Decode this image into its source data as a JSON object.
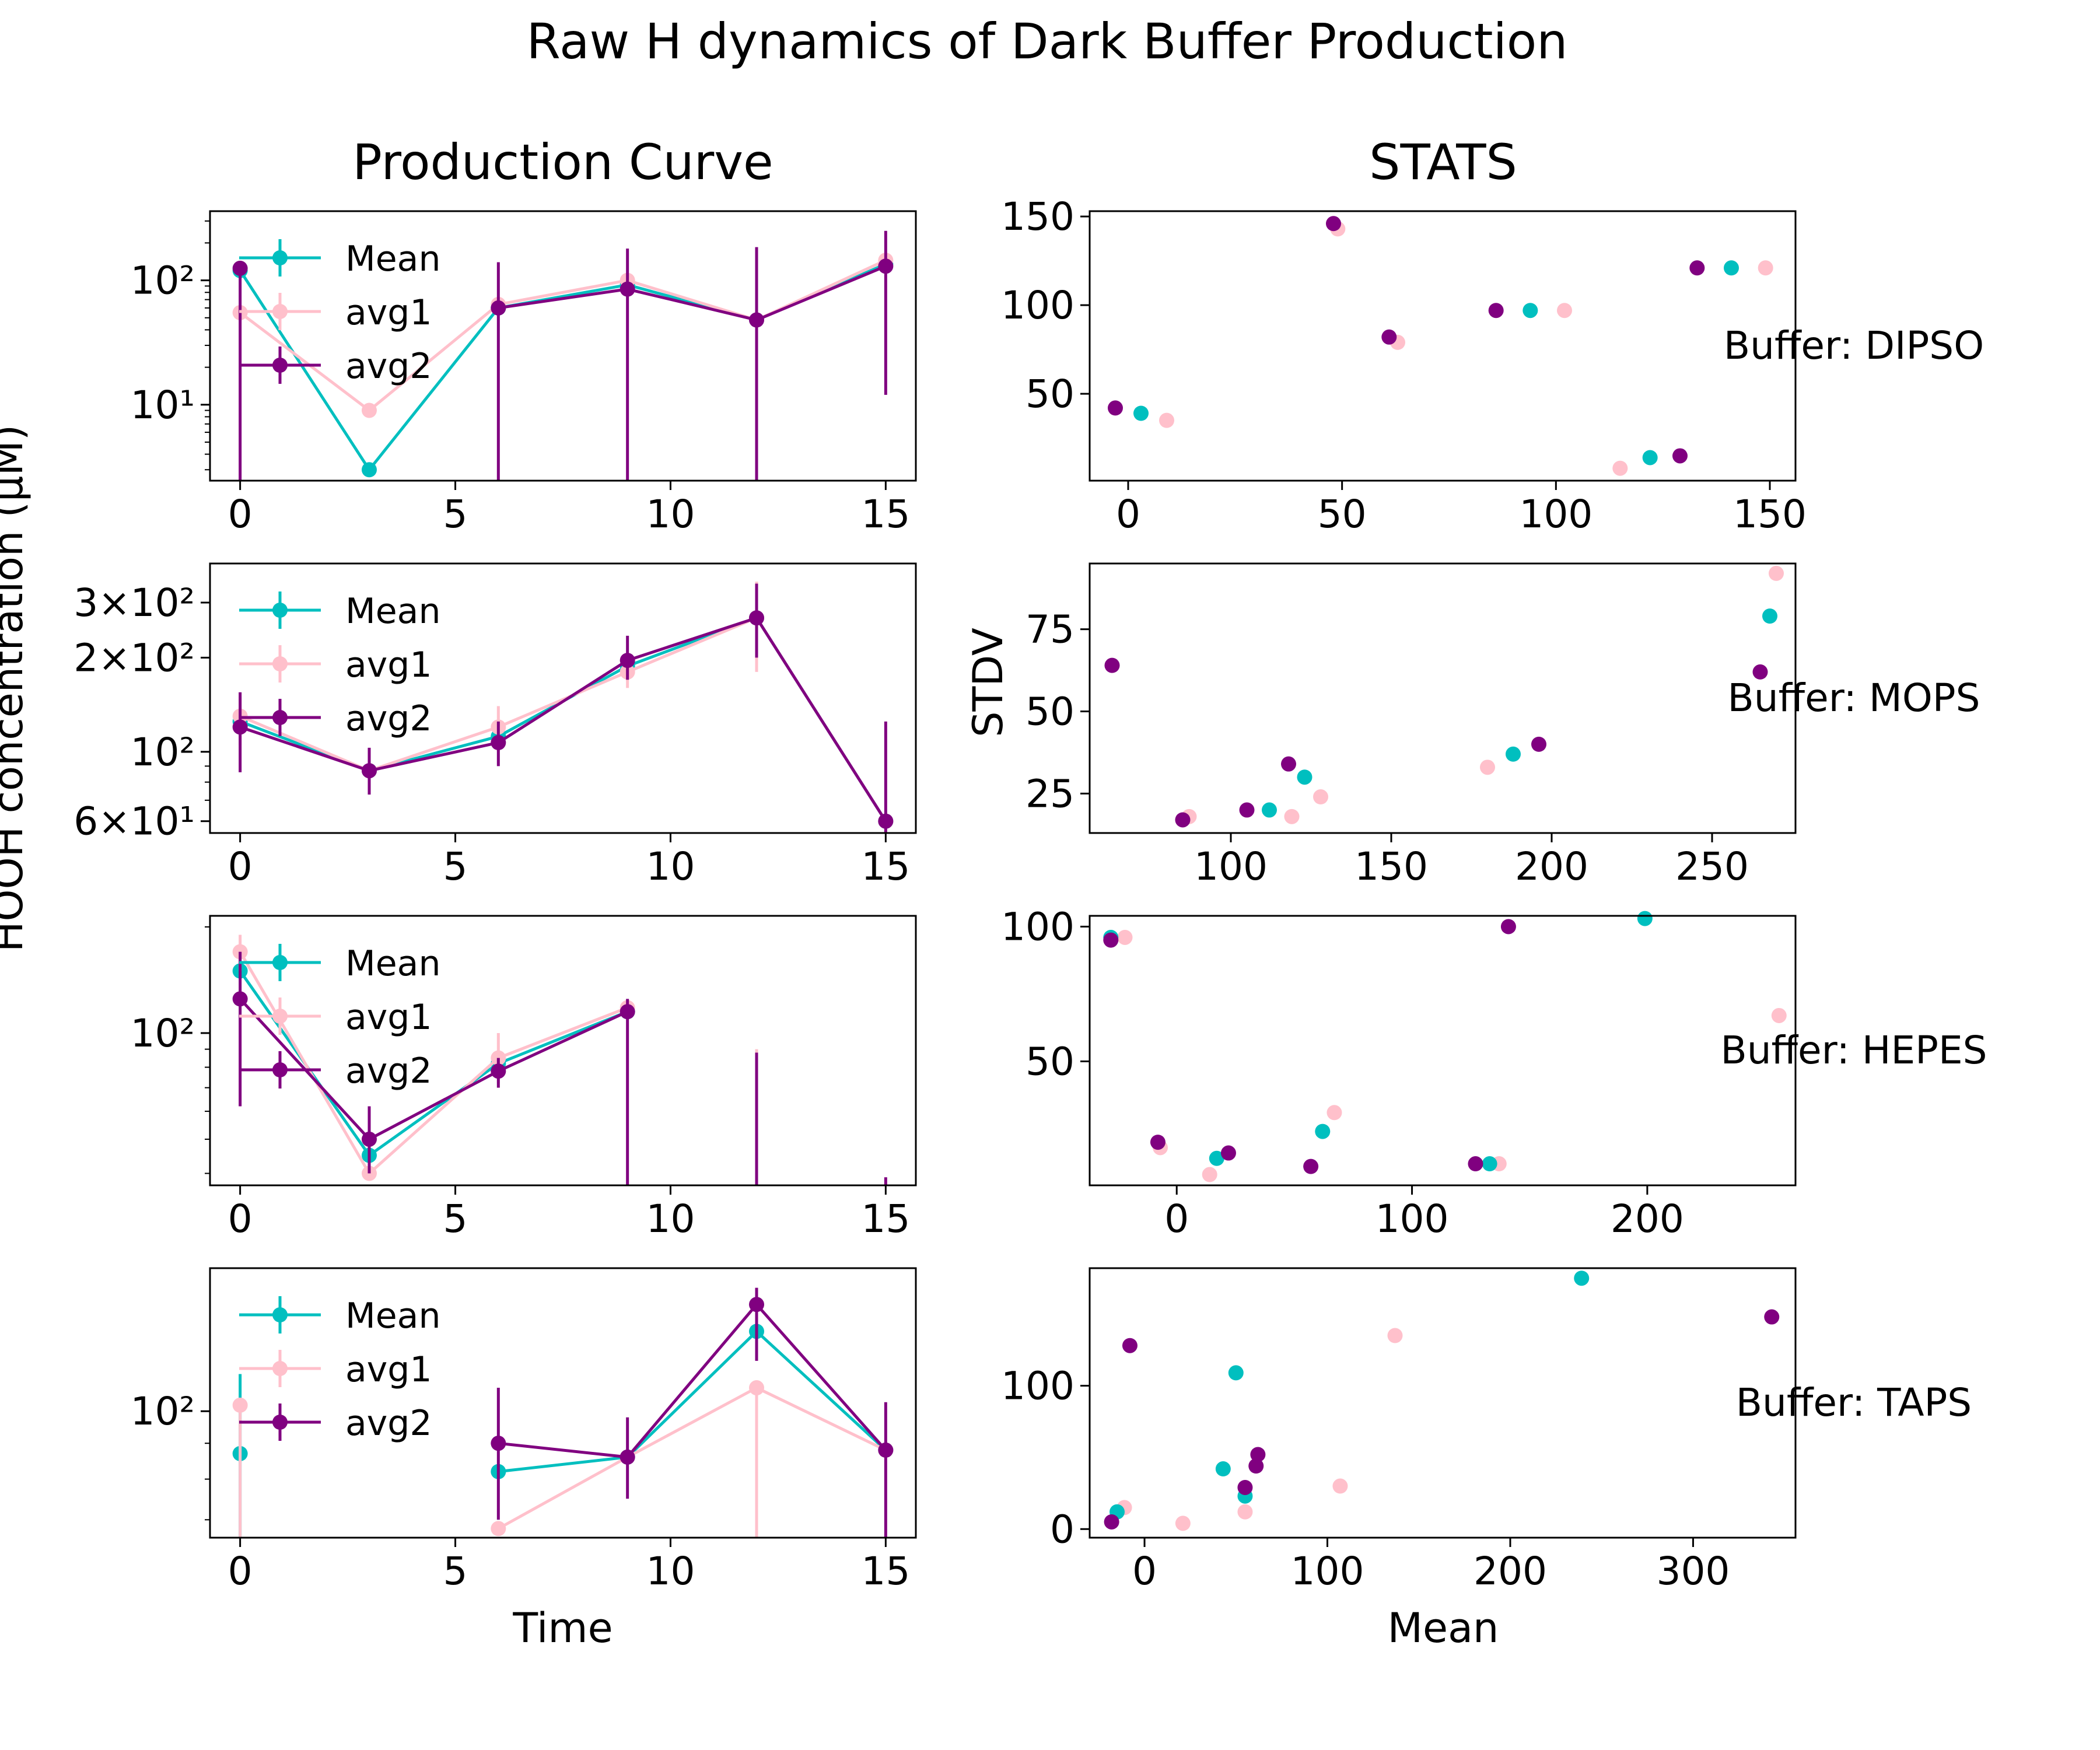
{
  "figure": {
    "title": "Raw H dynamics of Dark Buffer Production",
    "left_column_title": "Production Curve",
    "right_column_title": "STATS",
    "left_ylabel": "HOOH concentration (µM)",
    "left_xlabel": "Time",
    "right_xlabel": "Mean",
    "right_ylabel": "STDV"
  },
  "colors": {
    "Mean": "#00BFBF",
    "avg1": "#FFC0CB",
    "avg2": "#800080"
  },
  "chart_data": [
    {
      "type": "line",
      "panel": "production-DIPSO",
      "yscale": "log",
      "xlim": [
        -0.7,
        15.7
      ],
      "ylim": [
        2.45,
        360
      ],
      "xticks": [
        0,
        5,
        10,
        15
      ],
      "xtick_labels": [
        "0",
        "5",
        "10",
        "15"
      ],
      "yticks": [
        10,
        100
      ],
      "ytick_labels": [
        "10¹",
        "10²"
      ],
      "legend": [
        "Mean",
        "avg1",
        "avg2"
      ],
      "legend_position": "upper left",
      "x": [
        0,
        3,
        6,
        9,
        12,
        15
      ],
      "series": [
        {
          "name": "Mean",
          "values": [
            120,
            3,
            60,
            92,
            48,
            135
          ],
          "err": [
            [
              0,
              0
            ],
            [
              0,
              0
            ],
            [
              0,
              0
            ],
            [
              0,
              0
            ],
            [
              0,
              0
            ],
            [
              0,
              0
            ]
          ]
        },
        {
          "name": "avg1",
          "values": [
            55,
            9,
            64,
            100,
            48,
            145
          ],
          "err": [
            [
              0,
              0
            ],
            [
              0,
              0
            ],
            [
              0,
              0
            ],
            [
              0,
              0
            ],
            [
              0,
              0
            ],
            [
              0,
              0
            ]
          ]
        },
        {
          "name": "avg2",
          "values": [
            125,
            null,
            60,
            85,
            48,
            130
          ],
          "err": [
            [
              2.4,
              130
            ],
            [
              0,
              0
            ],
            [
              2.4,
              140
            ],
            [
              2.4,
              180
            ],
            [
              2.4,
              185
            ],
            [
              12,
              250
            ]
          ]
        }
      ]
    },
    {
      "type": "line",
      "panel": "production-MOPS",
      "yscale": "log",
      "xlim": [
        -0.7,
        15.7
      ],
      "ylim": [
        55,
        400
      ],
      "xticks": [
        0,
        5,
        10,
        15
      ],
      "xtick_labels": [
        "0",
        "5",
        "10",
        "15"
      ],
      "yticks": [
        60,
        100,
        200,
        300
      ],
      "ytick_labels": [
        "6×10¹",
        "10²",
        "2×10²",
        "3×10²"
      ],
      "legend": [
        "Mean",
        "avg1",
        "avg2"
      ],
      "legend_position": "upper left",
      "x": [
        0,
        3,
        6,
        9,
        12,
        15
      ],
      "series": [
        {
          "name": "Mean",
          "values": [
            125,
            87,
            112,
            188,
            268,
            60
          ],
          "err": [
            [
              0,
              0
            ],
            [
              0,
              0
            ],
            [
              0,
              0
            ],
            [
              0,
              0
            ],
            [
              0,
              0
            ],
            [
              0,
              0
            ]
          ]
        },
        {
          "name": "avg1",
          "values": [
            130,
            87,
            120,
            180,
            268,
            60
          ],
          "err": [
            [
              105,
              150
            ],
            [
              75,
              102
            ],
            [
              100,
              140
            ],
            [
              160,
              200
            ],
            [
              180,
              350
            ],
            [
              0,
              0
            ]
          ]
        },
        {
          "name": "avg2",
          "values": [
            120,
            87,
            107,
            196,
            268,
            60
          ],
          "err": [
            [
              86,
              155
            ],
            [
              73,
              103
            ],
            [
              90,
              125
            ],
            [
              170,
              235
            ],
            [
              200,
              345
            ],
            [
              55,
              125
            ]
          ]
        }
      ]
    },
    {
      "type": "line",
      "panel": "production-HEPES",
      "yscale": "log",
      "xlim": [
        -0.7,
        15.7
      ],
      "ylim": [
        37,
        215
      ],
      "xticks": [
        0,
        5,
        10,
        15
      ],
      "xtick_labels": [
        "0",
        "5",
        "10",
        "15"
      ],
      "yticks": [
        100
      ],
      "ytick_labels": [
        "10²"
      ],
      "legend": [
        "Mean",
        "avg1",
        "avg2"
      ],
      "legend_position": "upper left",
      "x": [
        0,
        3,
        6,
        9,
        12,
        15
      ],
      "series": [
        {
          "name": "Mean",
          "values": [
            150,
            45,
            82,
            115,
            null,
            null
          ],
          "err": [
            [
              0,
              0
            ],
            [
              0,
              0
            ],
            [
              0,
              0
            ],
            [
              0,
              0
            ],
            [
              0,
              0
            ],
            [
              0,
              0
            ]
          ]
        },
        {
          "name": "avg1",
          "values": [
            170,
            40,
            85,
            118,
            null,
            null
          ],
          "err": [
            [
              150,
              190
            ],
            [
              0,
              0
            ],
            [
              72,
              100
            ],
            [
              0,
              0
            ],
            [
              37,
              90
            ],
            [
              0,
              0
            ]
          ]
        },
        {
          "name": "avg2",
          "values": [
            125,
            50,
            78,
            115,
            null,
            null
          ],
          "err": [
            [
              62,
              170
            ],
            [
              40,
              62
            ],
            [
              70,
              85
            ],
            [
              37,
              125
            ],
            [
              37,
              88
            ],
            [
              37,
              39
            ]
          ]
        }
      ]
    },
    {
      "type": "line",
      "panel": "production-TAPS",
      "yscale": "log",
      "xlim": [
        -0.7,
        15.7
      ],
      "ylim": [
        66,
        160
      ],
      "xticks": [
        0,
        5,
        10,
        15
      ],
      "xtick_labels": [
        "0",
        "5",
        "10",
        "15"
      ],
      "yticks": [
        100
      ],
      "ytick_labels": [
        "10²"
      ],
      "legend": [
        "Mean",
        "avg1",
        "avg2"
      ],
      "legend_position": "upper left",
      "x": [
        0,
        3,
        6,
        9,
        12,
        15
      ],
      "series": [
        {
          "name": "Mean",
          "values": [
            87,
            null,
            82,
            86,
            130,
            88
          ],
          "err": [
            [
              66,
              113
            ],
            [
              0,
              0
            ],
            [
              0,
              0
            ],
            [
              0,
              0
            ],
            [
              0,
              0
            ],
            [
              0,
              0
            ]
          ]
        },
        {
          "name": "avg1",
          "values": [
            102,
            null,
            68,
            86,
            108,
            88
          ],
          "err": [
            [
              66,
              102
            ],
            [
              0,
              0
            ],
            [
              0,
              0
            ],
            [
              0,
              0
            ],
            [
              66,
              108
            ],
            [
              0,
              0
            ]
          ]
        },
        {
          "name": "avg2",
          "values": [
            null,
            null,
            90,
            86,
            142,
            88
          ],
          "err": [
            [
              0,
              0
            ],
            [
              0,
              0
            ],
            [
              70,
              108
            ],
            [
              75,
              98
            ],
            [
              118,
              150
            ],
            [
              66,
              103
            ]
          ]
        }
      ]
    },
    {
      "type": "scatter",
      "panel": "stats-DIPSO",
      "panel_label": "Buffer: DIPSO",
      "xlim": [
        -9,
        156
      ],
      "ylim": [
        1,
        153
      ],
      "xticks": [
        0,
        50,
        100,
        150
      ],
      "yticks": [
        50,
        100,
        150
      ],
      "series": [
        {
          "name": "Mean",
          "x": [
            3,
            94,
            122,
            141
          ],
          "y": [
            39,
            97,
            14,
            121
          ]
        },
        {
          "name": "avg1",
          "x": [
            9,
            49,
            63,
            102,
            115,
            149
          ],
          "y": [
            35,
            143,
            79,
            97,
            8,
            121
          ]
        },
        {
          "name": "avg2",
          "x": [
            -3,
            48,
            61,
            86,
            129,
            133
          ],
          "y": [
            42,
            146,
            82,
            97,
            15,
            121
          ]
        }
      ]
    },
    {
      "type": "scatter",
      "panel": "stats-MOPS",
      "panel_label": "Buffer: MOPS",
      "xlim": [
        56,
        276
      ],
      "ylim": [
        13,
        95
      ],
      "xticks": [
        100,
        150,
        200,
        250
      ],
      "yticks": [
        25,
        50,
        75
      ],
      "series": [
        {
          "name": "Mean",
          "x": [
            112,
            123,
            188,
            268
          ],
          "y": [
            20,
            30,
            37,
            79
          ]
        },
        {
          "name": "avg1",
          "x": [
            87,
            119,
            128,
            180,
            270
          ],
          "y": [
            18,
            18,
            24,
            33,
            92
          ]
        },
        {
          "name": "avg2",
          "x": [
            63,
            85,
            105,
            118,
            196,
            265
          ],
          "y": [
            64,
            17,
            20,
            34,
            40,
            62
          ]
        }
      ]
    },
    {
      "type": "scatter",
      "panel": "stats-HEPES",
      "panel_label": "Buffer: HEPES",
      "xlim": [
        -37,
        263
      ],
      "ylim": [
        4,
        104
      ],
      "xticks": [
        0,
        100,
        200
      ],
      "yticks": [
        50,
        100
      ],
      "series": [
        {
          "name": "Mean",
          "x": [
            -28,
            17,
            62,
            133,
            199
          ],
          "y": [
            96,
            14,
            24,
            12,
            103
          ]
        },
        {
          "name": "avg1",
          "x": [
            -22,
            -7,
            14,
            67,
            137,
            256
          ],
          "y": [
            96,
            18,
            8,
            31,
            12,
            67
          ]
        },
        {
          "name": "avg2",
          "x": [
            -28,
            -8,
            22,
            57,
            127,
            141
          ],
          "y": [
            95,
            20,
            16,
            11,
            12,
            100
          ]
        }
      ]
    },
    {
      "type": "scatter",
      "panel": "stats-TAPS",
      "panel_label": "Buffer: TAPS",
      "xlim": [
        -30,
        356
      ],
      "ylim": [
        -6,
        182
      ],
      "xticks": [
        0,
        100,
        200,
        300
      ],
      "yticks": [
        0,
        100
      ],
      "series": [
        {
          "name": "Mean",
          "x": [
            -15,
            43,
            50,
            55,
            239
          ],
          "y": [
            12,
            42,
            109,
            23,
            175
          ]
        },
        {
          "name": "avg1",
          "x": [
            -11,
            21,
            55,
            107,
            137
          ],
          "y": [
            15,
            4,
            12,
            30,
            135
          ]
        },
        {
          "name": "avg2",
          "x": [
            -18,
            -8,
            55,
            61,
            62,
            343
          ],
          "y": [
            5,
            128,
            29,
            44,
            52,
            148
          ]
        }
      ]
    }
  ]
}
